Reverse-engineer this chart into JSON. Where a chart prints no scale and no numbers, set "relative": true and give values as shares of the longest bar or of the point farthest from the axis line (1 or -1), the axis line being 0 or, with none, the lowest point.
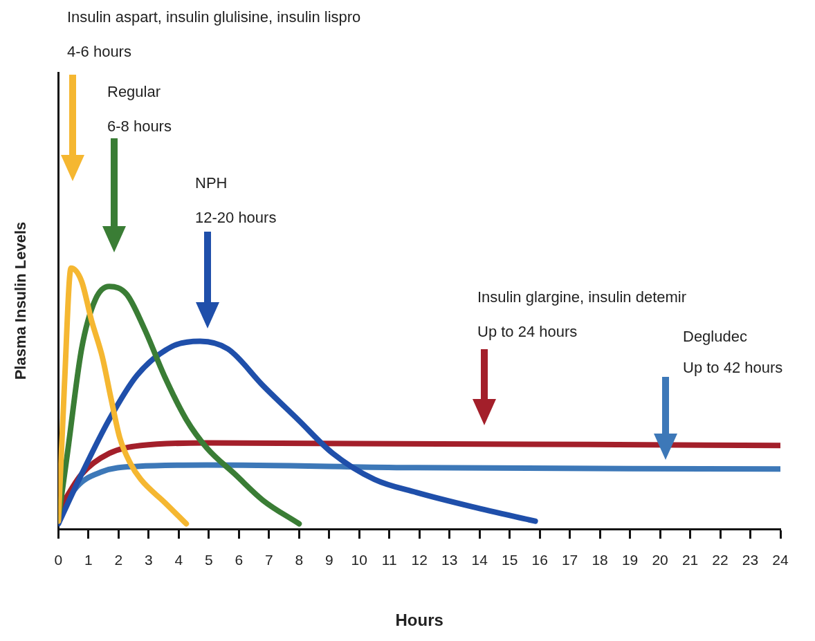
{
  "chart_data": {
    "type": "line",
    "relative": true,
    "xlabel": "Hours",
    "ylabel": "Plasma Insulin Levels",
    "xlim": [
      0,
      24
    ],
    "xticks": [
      0,
      1,
      2,
      3,
      4,
      5,
      6,
      7,
      8,
      9,
      10,
      11,
      12,
      13,
      14,
      15,
      16,
      17,
      18,
      19,
      20,
      21,
      22,
      23,
      24
    ],
    "grid": false,
    "legend": false,
    "marker": "none",
    "line_style": "solid",
    "series": [
      {
        "color": "#f5b731",
        "x": [
          0,
          0.2,
          0.42,
          0.77,
          1.1,
          1.46,
          1.75,
          2.04,
          2.4,
          2.74,
          3.55,
          4.25
        ],
        "values": [
          0.03,
          0.55,
          1.0,
          0.95,
          0.8,
          0.66,
          0.5,
          0.35,
          0.25,
          0.19,
          0.1,
          0.02
        ]
      },
      {
        "color": "#3a7d35",
        "x": [
          0,
          0.3,
          0.77,
          1.23,
          1.69,
          2.27,
          2.85,
          3.55,
          4.25,
          4.94,
          5.87,
          6.8,
          8.0
        ],
        "values": [
          0.04,
          0.29,
          0.69,
          0.88,
          0.93,
          0.9,
          0.77,
          0.58,
          0.42,
          0.31,
          0.21,
          0.11,
          0.02
        ]
      },
      {
        "color": "#1f4faa",
        "x": [
          0,
          0.77,
          1.69,
          2.62,
          3.78,
          4.71,
          5.64,
          6.8,
          7.96,
          9.12,
          10.51,
          11.9,
          13.76,
          15.85
        ],
        "values": [
          0.02,
          0.21,
          0.42,
          0.59,
          0.7,
          0.72,
          0.69,
          0.55,
          0.42,
          0.29,
          0.19,
          0.14,
          0.085,
          0.03
        ]
      },
      {
        "color": "#a31f2a",
        "x": [
          0,
          0.77,
          1.69,
          2.74,
          4.94,
          24
        ],
        "values": [
          0.07,
          0.21,
          0.29,
          0.32,
          0.33,
          0.32
        ]
      },
      {
        "color": "#3d78b8",
        "x": [
          0,
          0.53,
          1.46,
          2.62,
          4.94,
          11.9,
          24
        ],
        "values": [
          0.03,
          0.15,
          0.22,
          0.24,
          0.245,
          0.235,
          0.23
        ]
      }
    ],
    "annotations": [
      "Insulin aspart, insulin glulisine, insulin lispro\n4-6 hours",
      "Regular\n6-8 hours",
      "NPH\n12-20 hours",
      "Insulin glargine, insulin detemir\nUp to 24 hours",
      "Degludec\nUp to 42 hours"
    ]
  }
}
